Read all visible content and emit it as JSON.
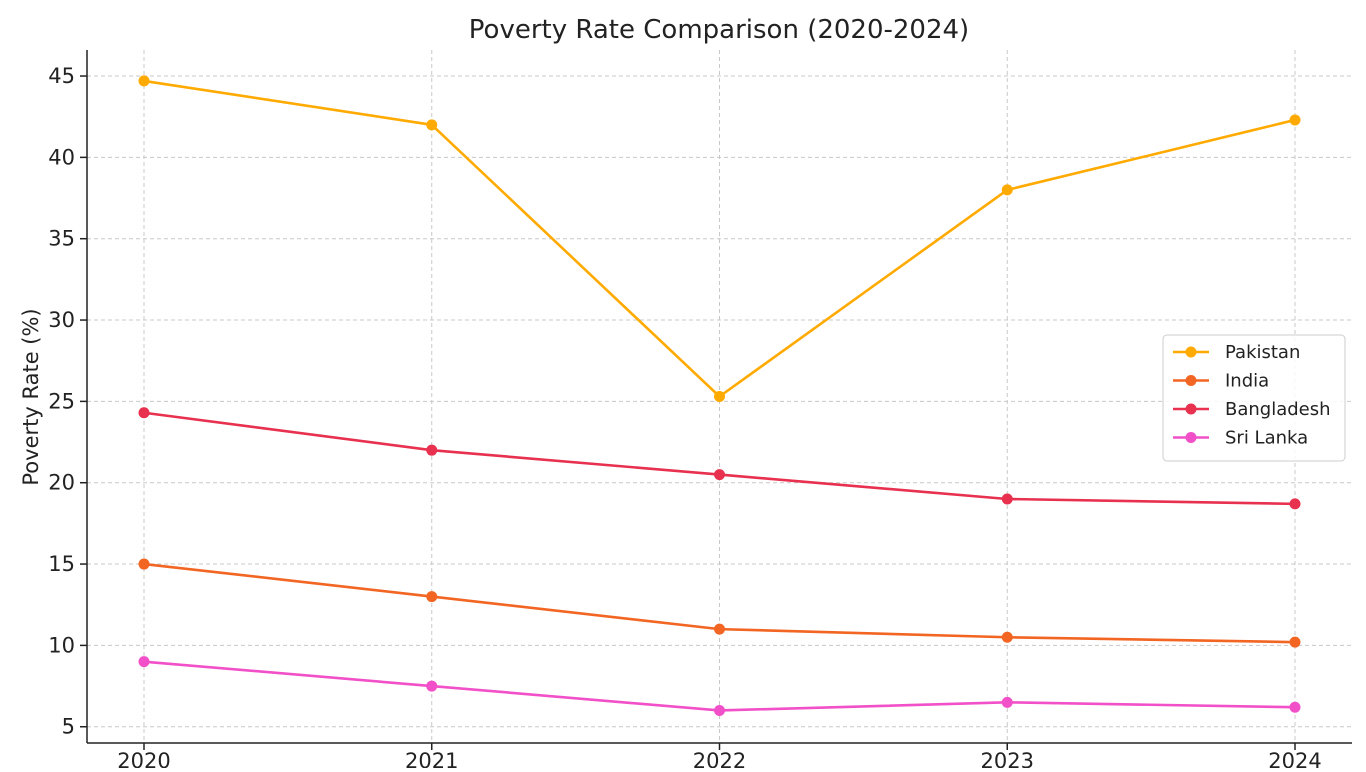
{
  "chart_data": {
    "type": "line",
    "title": "Poverty Rate Comparison (2020-2024)",
    "xlabel": "",
    "ylabel": "Poverty Rate (%)",
    "x": [
      "2020",
      "2021",
      "2022",
      "2023",
      "2024"
    ],
    "yticks": [
      5,
      10,
      15,
      20,
      25,
      30,
      35,
      40,
      45
    ],
    "ylim": [
      4,
      46.6
    ],
    "grid": true,
    "legend_position": "center-right",
    "series": [
      {
        "name": "Pakistan",
        "color": "#FFAA00",
        "values": [
          44.7,
          42.0,
          25.3,
          38.0,
          42.3
        ]
      },
      {
        "name": "India",
        "color": "#F26522",
        "values": [
          15.0,
          13.0,
          11.0,
          10.5,
          10.2
        ]
      },
      {
        "name": "Bangladesh",
        "color": "#E8304F",
        "values": [
          24.3,
          22.0,
          20.5,
          19.0,
          18.7
        ]
      },
      {
        "name": "Sri Lanka",
        "color": "#F250C8",
        "values": [
          9.0,
          7.5,
          6.0,
          6.5,
          6.2
        ]
      }
    ]
  }
}
